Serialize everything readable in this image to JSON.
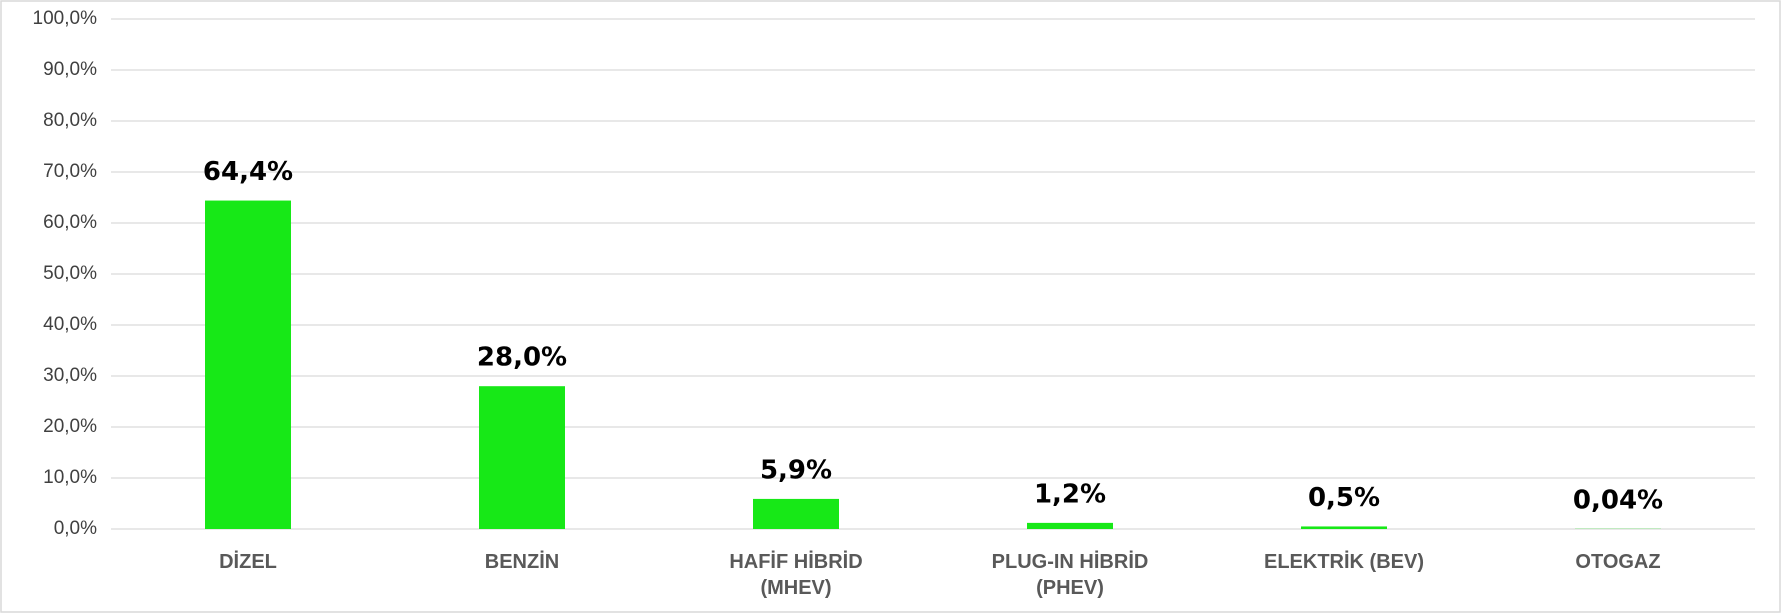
{
  "chart_data": {
    "type": "bar",
    "categories": [
      "DİZEL",
      "BENZİN",
      "HAFİF HİBRİD (MHEV)",
      "PLUG-IN HİBRİD (PHEV)",
      "ELEKTRİK (BEV)",
      "OTOGAZ"
    ],
    "values": [
      64.4,
      28.0,
      5.9,
      1.2,
      0.5,
      0.04
    ],
    "value_labels": [
      "64,4%",
      "28,0%",
      "5,9%",
      "1,2%",
      "0,5%",
      "0,04%"
    ],
    "color": "#17e817",
    "ylim": [
      0,
      100
    ],
    "yticks": [
      {
        "value": 0,
        "label": "0,0%"
      },
      {
        "value": 10,
        "label": "10,0%"
      },
      {
        "value": 20,
        "label": "20,0%"
      },
      {
        "value": 30,
        "label": "30,0%"
      },
      {
        "value": 40,
        "label": "40,0%"
      },
      {
        "value": 50,
        "label": "50,0%"
      },
      {
        "value": 60,
        "label": "60,0%"
      },
      {
        "value": 70,
        "label": "70,0%"
      },
      {
        "value": 80,
        "label": "80,0%"
      },
      {
        "value": 90,
        "label": "90,0%"
      },
      {
        "value": 100,
        "label": "100,0%"
      }
    ],
    "grid": true
  }
}
